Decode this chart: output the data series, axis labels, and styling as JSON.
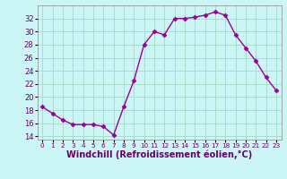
{
  "x": [
    0,
    1,
    2,
    3,
    4,
    5,
    6,
    7,
    8,
    9,
    10,
    11,
    12,
    13,
    14,
    15,
    16,
    17,
    18,
    19,
    20,
    21,
    22,
    23
  ],
  "y": [
    18.5,
    17.5,
    16.5,
    15.8,
    15.8,
    15.8,
    15.5,
    14.2,
    18.5,
    22.5,
    28.0,
    30.0,
    29.5,
    32.0,
    32.0,
    32.2,
    32.5,
    33.0,
    32.5,
    29.5,
    27.5,
    25.5,
    23.0,
    21.0
  ],
  "line_color": "#990099",
  "marker": "D",
  "markersize": 2.5,
  "linewidth": 1.0,
  "bg_color": "#ccf5f5",
  "grid_color": "#aaddcc",
  "xlabel": "Windchill (Refroidissement éolien,°C)",
  "xlabel_color": "#660066",
  "tick_color": "#660066",
  "ylim": [
    13.5,
    34.0
  ],
  "xlim": [
    -0.5,
    23.5
  ],
  "yticks": [
    14,
    16,
    18,
    20,
    22,
    24,
    26,
    28,
    30,
    32
  ],
  "xtick_labels": [
    "0",
    "1",
    "2",
    "3",
    "4",
    "5",
    "6",
    "7",
    "8",
    "9",
    "10",
    "11",
    "12",
    "13",
    "14",
    "15",
    "16",
    "17",
    "18",
    "19",
    "20",
    "21",
    "22",
    "23"
  ],
  "ylabel_fontsize": 6.0,
  "xlabel_fontsize": 7.0,
  "xtick_fontsize": 5.2,
  "ytick_fontsize": 6.0
}
